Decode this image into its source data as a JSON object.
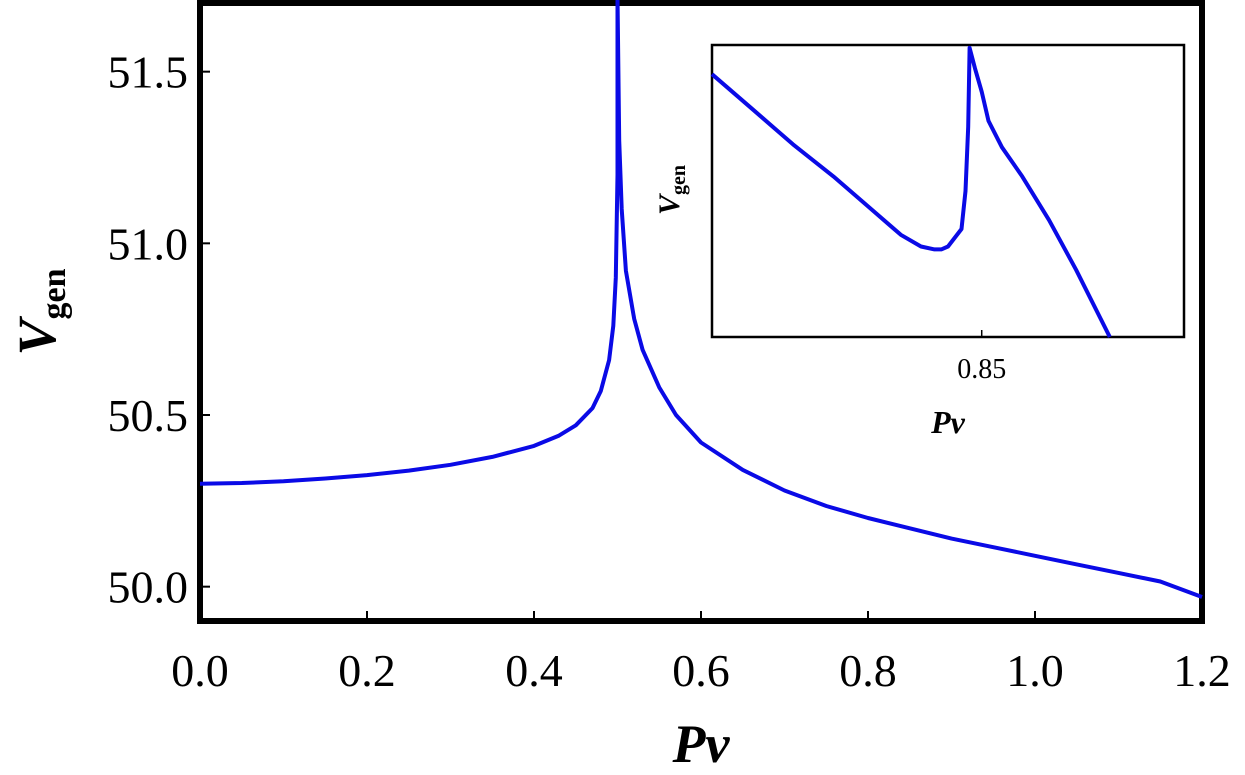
{
  "chart_data": [
    {
      "type": "line",
      "xlabel": "Pv",
      "ylabel": "V",
      "ylabel_subscript": "gen",
      "xlim": [
        0.0,
        1.2
      ],
      "ylim": [
        49.9,
        51.7
      ],
      "x_ticks": [
        "0.0",
        "0.2",
        "0.4",
        "0.6",
        "0.8",
        "1.0",
        "1.2"
      ],
      "x_tick_values": [
        0.0,
        0.2,
        0.4,
        0.6,
        0.8,
        1.0,
        1.2
      ],
      "y_ticks": [
        "50.0",
        "50.5",
        "51.0",
        "51.5"
      ],
      "y_tick_values": [
        50.0,
        50.5,
        51.0,
        51.5
      ],
      "grid": false,
      "series": [
        {
          "color": "#0a0ae6",
          "x": [
            0.0,
            0.05,
            0.1,
            0.15,
            0.2,
            0.25,
            0.3,
            0.35,
            0.4,
            0.43,
            0.45,
            0.47,
            0.48,
            0.49,
            0.495,
            0.498,
            0.5,
            0.5,
            0.502,
            0.505,
            0.51,
            0.52,
            0.53,
            0.55,
            0.57,
            0.6,
            0.65,
            0.7,
            0.75,
            0.8,
            0.85,
            0.9,
            0.95,
            1.0,
            1.05,
            1.1,
            1.15,
            1.2
          ],
          "y": [
            50.3,
            50.302,
            50.307,
            50.315,
            50.325,
            50.338,
            50.355,
            50.378,
            50.41,
            50.44,
            50.47,
            50.52,
            50.57,
            50.66,
            50.76,
            50.9,
            51.2,
            51.75,
            51.3,
            51.1,
            50.92,
            50.78,
            50.69,
            50.58,
            50.5,
            50.42,
            50.34,
            50.28,
            50.235,
            50.2,
            50.17,
            50.14,
            50.115,
            50.09,
            50.065,
            50.04,
            50.015,
            49.97
          ]
        }
      ]
    },
    {
      "type": "line",
      "xlabel": "Pv",
      "ylabel": "V",
      "ylabel_subscript": "gen",
      "xlim": [
        0.825,
        0.86
      ],
      "ylim": [
        0.0,
        1.0
      ],
      "x_ticks": [
        "0.85"
      ],
      "x_tick_values": [
        0.845
      ],
      "y_ticks": [],
      "grid": false,
      "series": [
        {
          "color": "#0a0ae6",
          "x": [
            0.825,
            0.828,
            0.831,
            0.834,
            0.837,
            0.839,
            0.8405,
            0.8415,
            0.842,
            0.8425,
            0.8435,
            0.8438,
            0.844,
            0.8441,
            0.8445,
            0.845,
            0.8455,
            0.8465,
            0.848,
            0.85,
            0.852,
            0.8545
          ],
          "y": [
            0.9,
            0.78,
            0.66,
            0.55,
            0.43,
            0.35,
            0.31,
            0.3,
            0.3,
            0.31,
            0.37,
            0.5,
            0.72,
            0.99,
            0.92,
            0.84,
            0.74,
            0.65,
            0.55,
            0.4,
            0.23,
            0.0
          ]
        }
      ]
    }
  ]
}
